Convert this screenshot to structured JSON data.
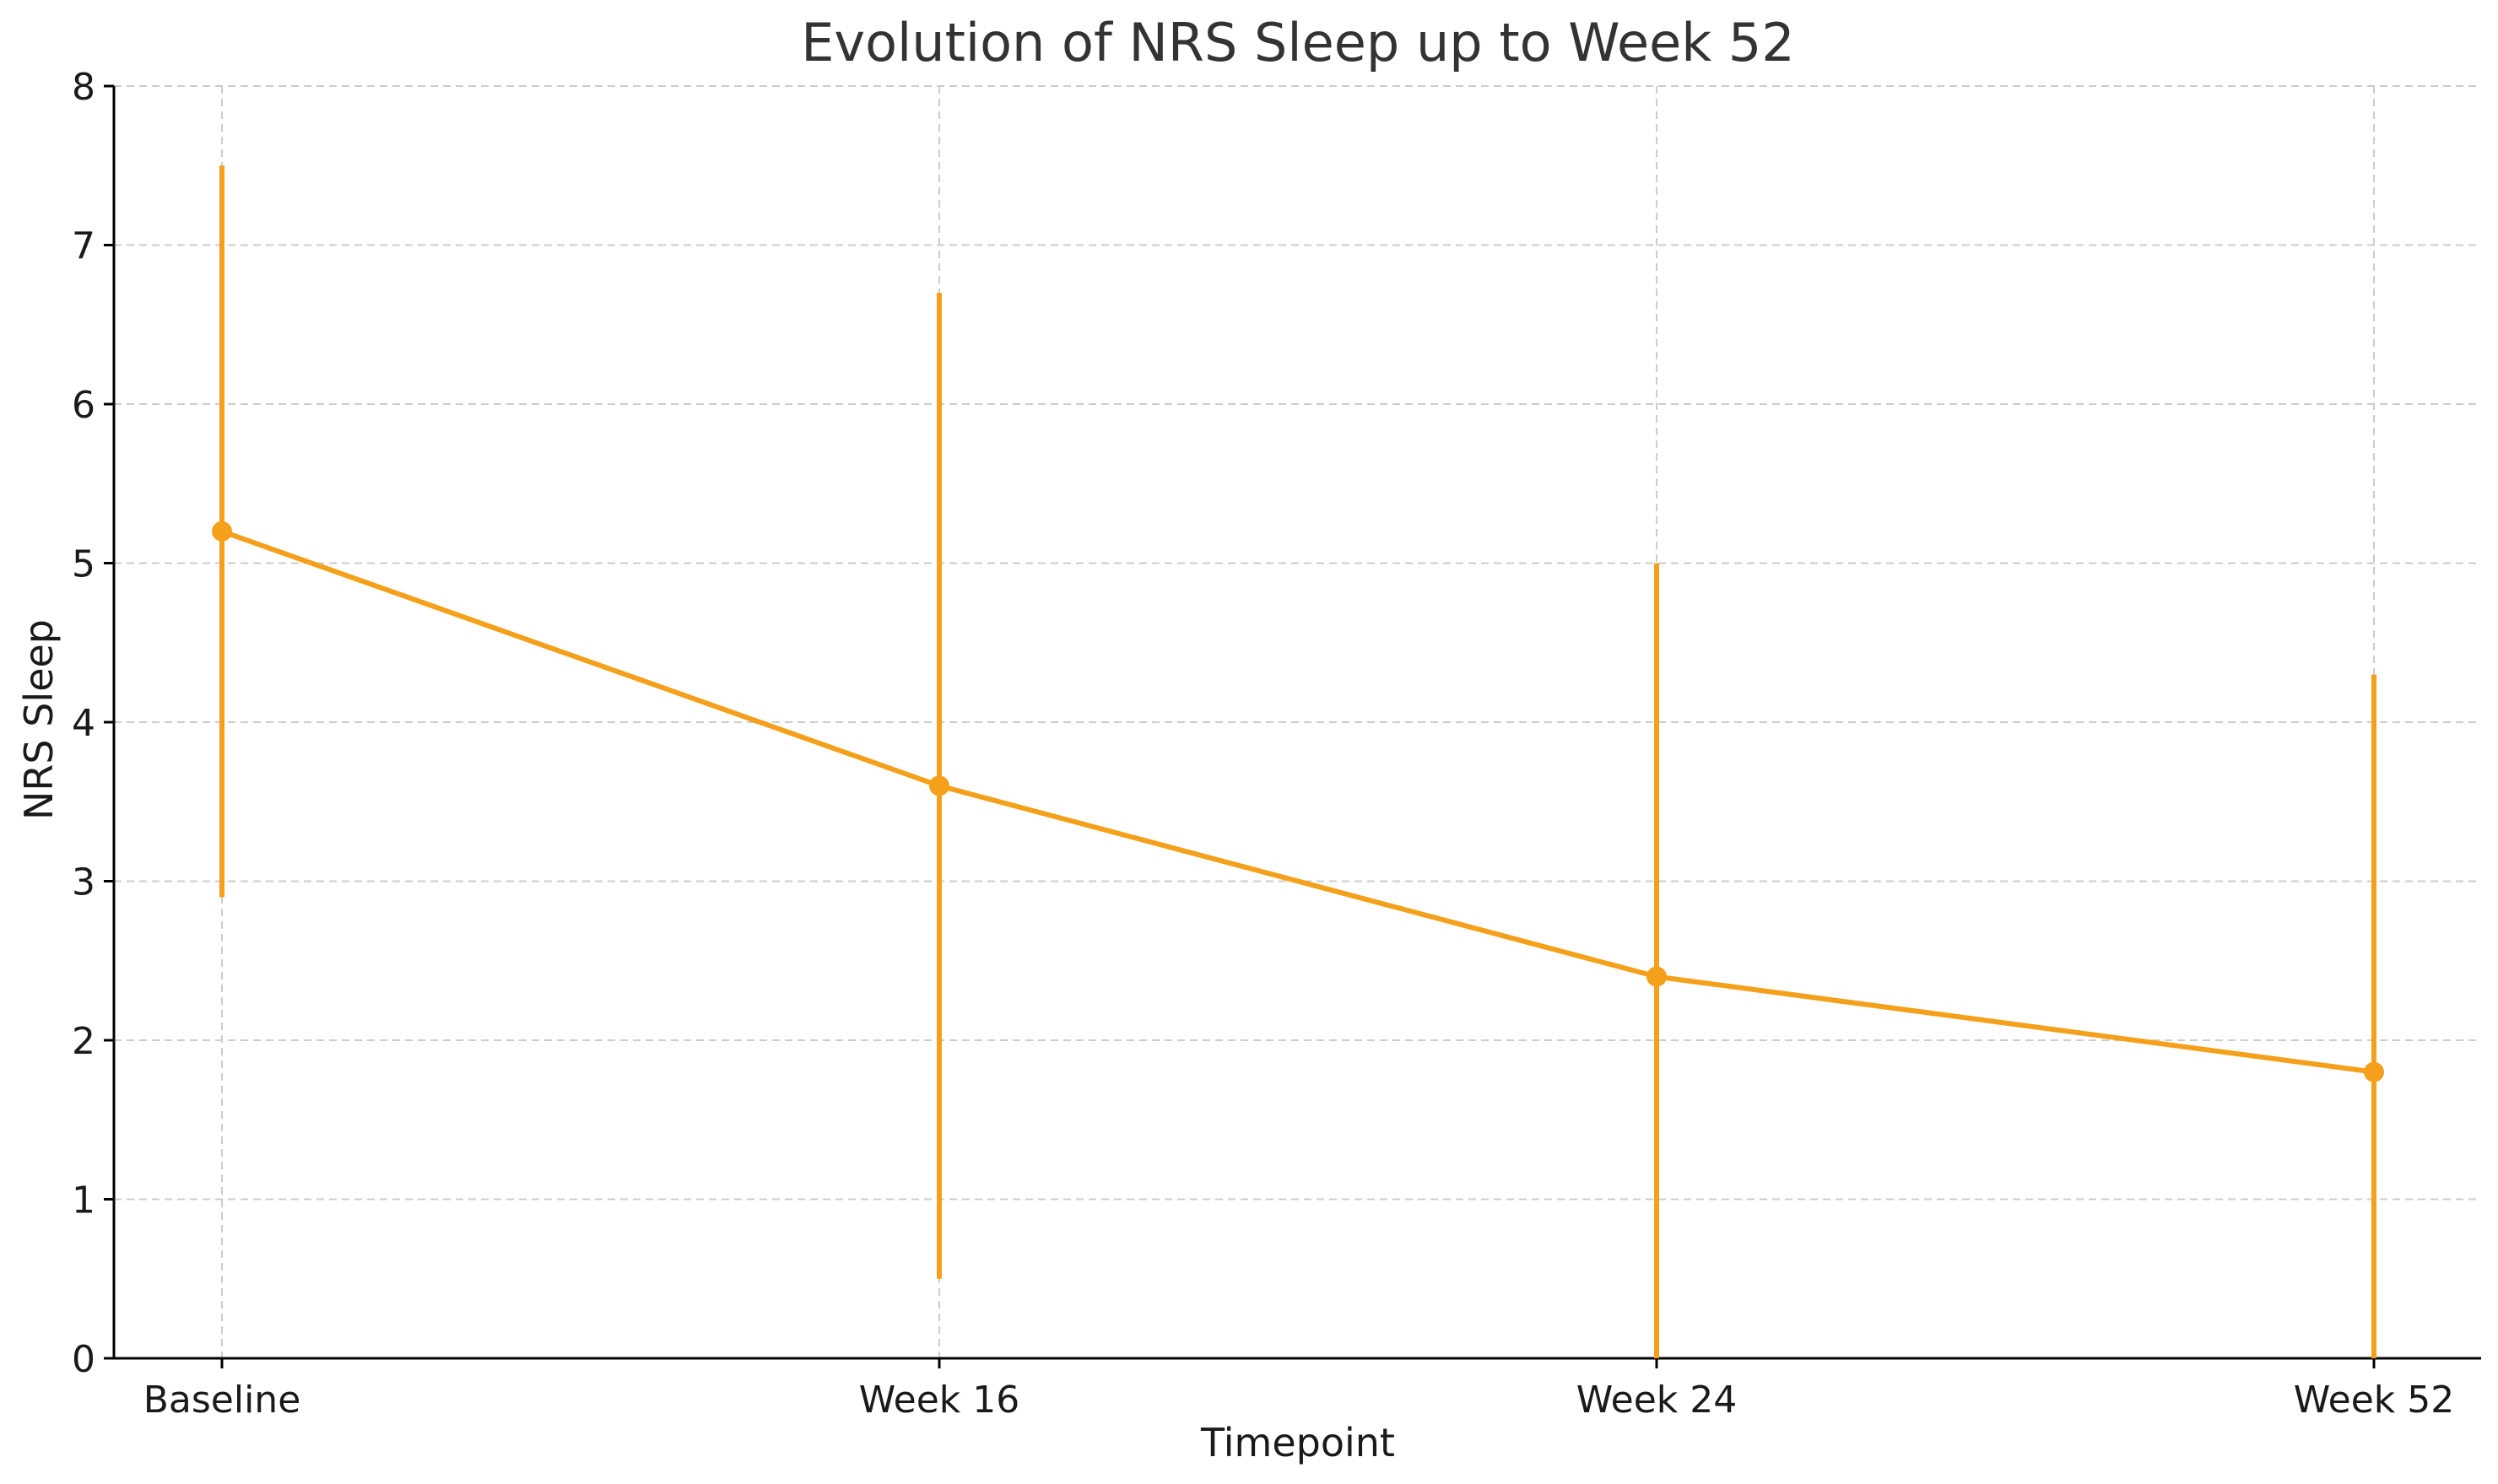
{
  "chart_data": {
    "type": "line",
    "title": "Evolution of NRS Sleep up to Week 52",
    "xlabel": "Timepoint",
    "ylabel": "NRS Sleep",
    "categories": [
      "Baseline",
      "Week 16",
      "Week 24",
      "Week 52"
    ],
    "series": [
      {
        "values": [
          5.2,
          3.6,
          2.4,
          1.8
        ],
        "error_lower": [
          2.9,
          0.5,
          0.0,
          0.0
        ],
        "error_upper": [
          7.5,
          6.7,
          5.0,
          4.3
        ],
        "color": "#F5A01A"
      }
    ],
    "ylim": [
      0,
      8
    ],
    "yticks": [
      "0",
      "1",
      "2",
      "3",
      "4",
      "5",
      "6",
      "7",
      "8"
    ],
    "grid": true,
    "legend": "none"
  }
}
